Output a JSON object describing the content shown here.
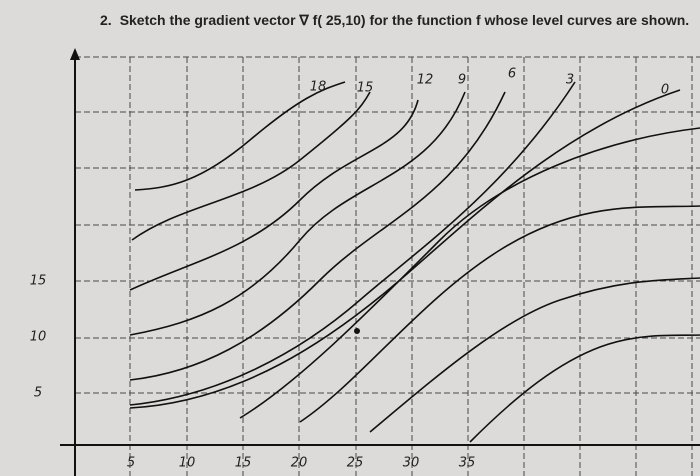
{
  "question": {
    "number": "2.",
    "text": "Sketch the gradient vector ∇ f( 25,10) for the function f whose level curves are shown."
  },
  "level_labels": [
    18,
    15,
    12,
    9,
    6,
    3,
    0
  ],
  "x_axis_labels": [
    5,
    10,
    15,
    20,
    25,
    30,
    35
  ],
  "y_axis_labels": [
    15,
    10,
    5
  ]
}
